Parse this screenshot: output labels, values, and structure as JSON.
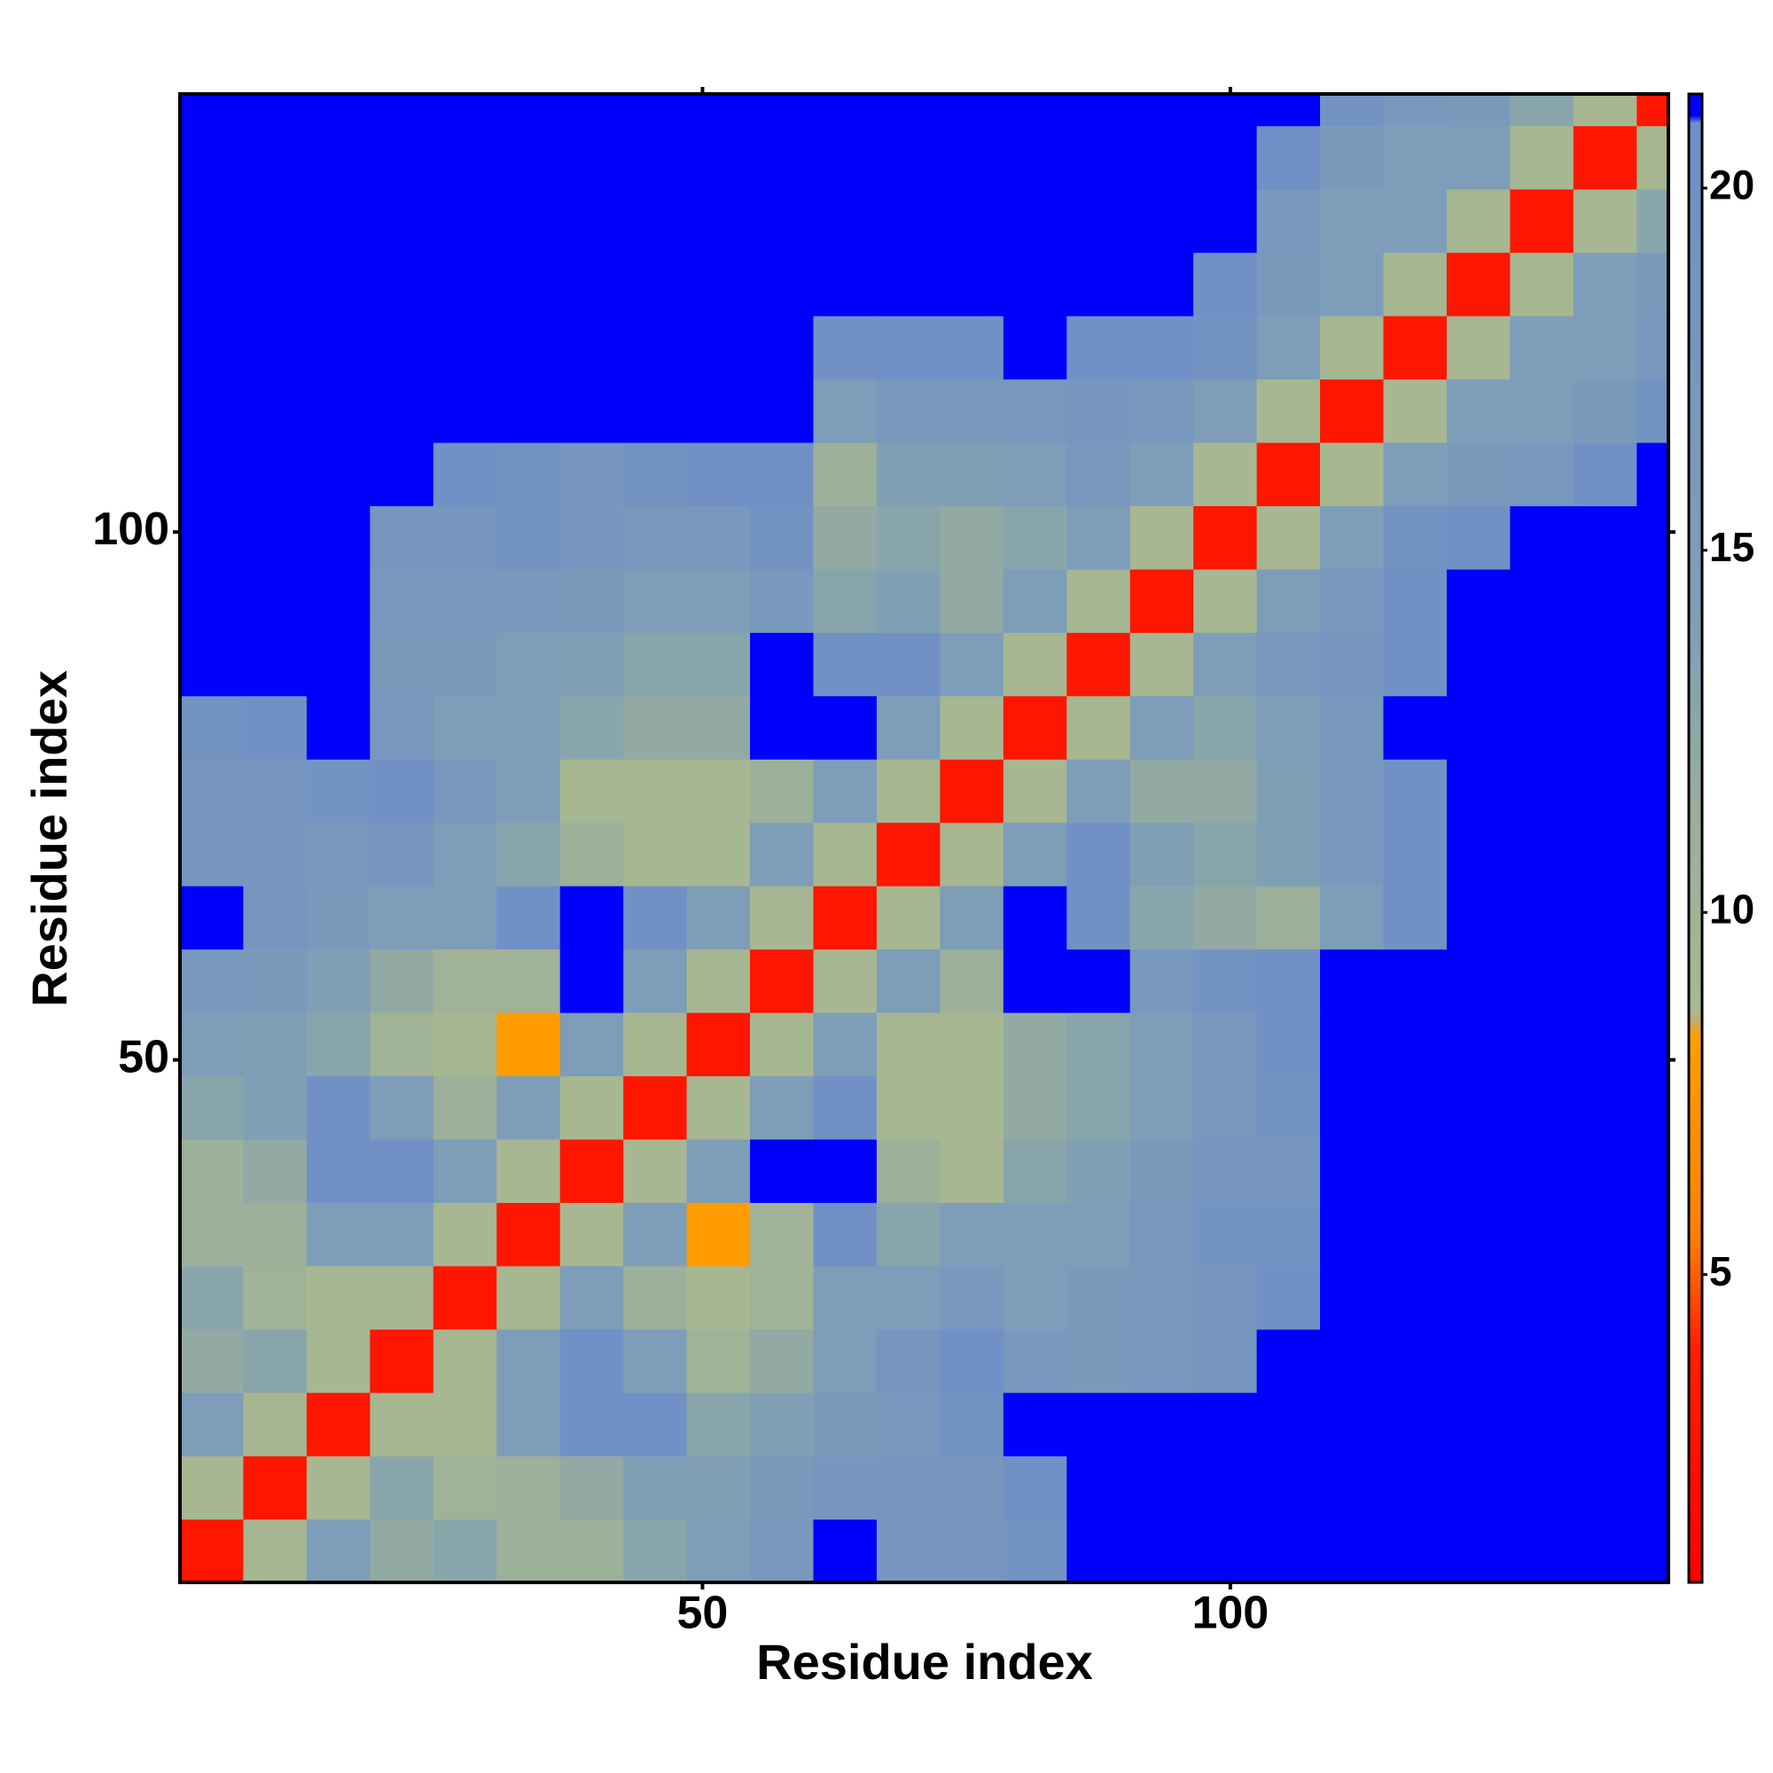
{
  "chart_data": {
    "type": "heatmap",
    "x_label": "Residue index",
    "y_label": "Residue index",
    "xbins": [
      0.5,
      6.5,
      12.5,
      18.5,
      24.5,
      30.5,
      36.5,
      42.5,
      48.5,
      54.5,
      60.5,
      66.5,
      72.5,
      78.5,
      84.5,
      90.5,
      96.5,
      102.5,
      108.5,
      114.5,
      120.5,
      126.5,
      132.5,
      138.5,
      141.5
    ],
    "ybins": [
      0.5,
      6.5,
      12.5,
      18.5,
      24.5,
      30.5,
      36.5,
      42.5,
      48.5,
      54.5,
      60.5,
      66.5,
      72.5,
      78.5,
      84.5,
      90.5,
      96.5,
      102.5,
      108.5,
      114.5,
      120.5,
      126.5,
      132.5,
      138.5,
      141.5
    ],
    "xlim": [
      0.5,
      141.5
    ],
    "ylim": [
      0.5,
      141.5
    ],
    "xticks": [
      50,
      100
    ],
    "yticks": [
      50,
      100
    ],
    "values": [
      [
        3,
        9,
        15,
        12,
        13,
        11,
        11,
        13,
        15,
        17,
        21.2,
        18,
        18,
        19,
        21.2,
        21.2,
        21.2,
        21.2,
        21.2,
        21.2,
        21.2,
        21.2,
        21.2,
        21.2
      ],
      [
        9,
        3,
        9,
        13,
        10,
        11,
        12,
        14,
        14,
        16,
        18,
        18,
        18,
        20,
        21.2,
        21.2,
        21.2,
        21.2,
        21.2,
        21.2,
        21.2,
        21.2,
        21.2,
        21.2
      ],
      [
        15,
        9,
        3,
        9,
        9,
        15,
        20,
        20,
        13,
        14,
        16,
        17,
        19,
        21.2,
        21.2,
        21.2,
        21.2,
        21.2,
        21.2,
        21.2,
        21.2,
        21.2,
        21.2,
        21.2
      ],
      [
        12,
        13,
        9,
        3,
        9,
        15,
        20,
        15,
        10,
        12,
        15,
        18,
        20,
        17,
        16,
        17,
        18,
        21.2,
        21.2,
        21.2,
        21.2,
        21.2,
        21.2,
        21.2
      ],
      [
        13,
        10,
        9,
        9,
        3,
        9,
        15,
        11,
        9,
        10,
        15,
        15,
        17,
        15,
        16,
        17,
        18,
        20,
        21.2,
        21.2,
        21.2,
        21.2,
        21.2,
        21.2
      ],
      [
        11,
        11,
        15,
        15,
        9,
        3,
        9,
        15,
        8,
        10,
        20,
        13,
        15,
        15,
        15,
        17,
        19,
        19,
        21.2,
        21.2,
        21.2,
        21.2,
        21.2,
        21.2
      ],
      [
        11,
        12,
        20,
        20,
        15,
        9,
        3,
        9,
        15,
        21.2,
        21.2,
        11,
        9,
        13,
        14,
        16,
        18,
        18,
        21.2,
        21.2,
        21.2,
        21.2,
        21.2,
        21.2
      ],
      [
        13,
        14,
        20,
        15,
        11,
        15,
        9,
        3,
        9,
        15,
        20,
        9,
        9,
        12,
        13,
        15,
        17,
        19,
        21.2,
        21.2,
        21.2,
        21.2,
        21.2,
        21.2
      ],
      [
        15,
        14,
        13,
        10,
        9,
        8,
        15,
        9,
        3,
        9,
        15,
        9,
        9,
        12,
        13,
        15,
        17,
        20,
        21.2,
        21.2,
        21.2,
        21.2,
        21.2,
        21.2
      ],
      [
        17,
        16,
        14,
        12,
        10,
        10,
        21.2,
        15,
        9,
        3,
        9,
        15,
        11,
        21.2,
        21.2,
        17,
        19,
        20,
        21.2,
        21.2,
        21.2,
        21.2,
        21.2,
        21.2
      ],
      [
        21.2,
        18,
        16,
        15,
        15,
        20,
        21.2,
        20,
        15,
        9,
        3,
        9,
        15,
        21.2,
        20,
        13,
        12,
        11,
        15,
        20,
        21.2,
        21.2,
        21.2,
        21.2
      ],
      [
        18,
        18,
        17,
        18,
        15,
        13,
        11,
        9,
        9,
        15,
        9,
        3,
        9,
        15,
        20,
        14,
        13,
        14,
        17,
        20,
        21.2,
        21.2,
        21.2,
        21.2
      ],
      [
        18,
        18,
        19,
        20,
        17,
        15,
        9,
        9,
        9,
        11,
        15,
        9,
        3,
        9,
        15,
        12,
        12,
        14,
        17,
        20,
        21.2,
        21.2,
        21.2,
        21.2
      ],
      [
        19,
        20,
        21.2,
        17,
        15,
        15,
        13,
        12,
        12,
        21.2,
        21.2,
        15,
        9,
        3,
        9,
        15,
        13,
        15,
        17,
        21.2,
        21.2,
        21.2,
        21.2,
        21.2
      ],
      [
        21.2,
        21.2,
        21.2,
        16,
        16,
        15,
        14,
        13,
        13,
        21.2,
        20,
        20,
        15,
        9,
        3,
        9,
        15,
        17,
        18,
        20,
        21.2,
        21.2,
        21.2,
        21.2
      ],
      [
        21.2,
        21.2,
        21.2,
        17,
        17,
        17,
        16,
        15,
        15,
        17,
        13,
        14,
        12,
        15,
        9,
        3,
        9,
        15,
        17,
        20,
        21.2,
        21.2,
        21.2,
        21.2
      ],
      [
        21.2,
        21.2,
        21.2,
        18,
        18,
        19,
        18,
        17,
        17,
        19,
        12,
        13,
        12,
        13,
        15,
        9,
        3,
        9,
        15,
        19,
        20,
        21.2,
        21.2,
        21.2
      ],
      [
        21.2,
        21.2,
        21.2,
        21.2,
        20,
        19,
        18,
        19,
        20,
        20,
        11,
        14,
        14,
        15,
        17,
        15,
        9,
        3,
        9,
        15,
        16,
        17,
        20,
        21.2
      ],
      [
        21.2,
        21.2,
        21.2,
        21.2,
        21.2,
        21.2,
        21.2,
        21.2,
        21.2,
        21.2,
        15,
        17,
        17,
        17,
        18,
        17,
        15,
        9,
        3,
        9,
        15,
        15,
        16,
        19
      ],
      [
        21.2,
        21.2,
        21.2,
        21.2,
        21.2,
        21.2,
        21.2,
        21.2,
        21.2,
        21.2,
        20,
        20,
        20,
        21.2,
        20,
        20,
        19,
        15,
        9,
        3,
        9,
        15,
        15,
        17
      ],
      [
        21.2,
        21.2,
        21.2,
        21.2,
        21.2,
        21.2,
        21.2,
        21.2,
        21.2,
        21.2,
        21.2,
        21.2,
        21.2,
        21.2,
        21.2,
        21.2,
        20,
        16,
        15,
        9,
        3,
        9,
        15,
        16
      ],
      [
        21.2,
        21.2,
        21.2,
        21.2,
        21.2,
        21.2,
        21.2,
        21.2,
        21.2,
        21.2,
        21.2,
        21.2,
        21.2,
        21.2,
        21.2,
        21.2,
        21.2,
        17,
        15,
        15,
        9,
        3,
        9,
        13
      ],
      [
        21.2,
        21.2,
        21.2,
        21.2,
        21.2,
        21.2,
        21.2,
        21.2,
        21.2,
        21.2,
        21.2,
        21.2,
        21.2,
        21.2,
        21.2,
        21.2,
        21.2,
        20,
        16,
        15,
        15,
        9,
        3,
        9
      ],
      [
        21.2,
        21.2,
        21.2,
        21.2,
        21.2,
        21.2,
        21.2,
        21.2,
        21.2,
        21.2,
        21.2,
        21.2,
        21.2,
        21.2,
        21.2,
        21.2,
        21.2,
        21.2,
        19,
        17,
        16,
        13,
        9,
        3
      ]
    ],
    "colorscale": [
      {
        "value": 0.75,
        "color": "#ff0000"
      },
      {
        "value": 4,
        "color": "#ff2000"
      },
      {
        "value": 5.5,
        "color": "#ff8000"
      },
      {
        "value": 8.3,
        "color": "#ffa000"
      },
      {
        "value": 8.6,
        "color": "#a8b890"
      },
      {
        "value": 11,
        "color": "#9cb09a"
      },
      {
        "value": 14,
        "color": "#7f9fb5"
      },
      {
        "value": 20.9,
        "color": "#6f8fc8"
      },
      {
        "value": 21,
        "color": "#0000ff"
      },
      {
        "value": 21.3,
        "color": "#0000ff"
      }
    ],
    "colorbar": {
      "lim": [
        0.75,
        21.3
      ],
      "ticks": [
        5,
        10,
        15,
        20
      ]
    }
  }
}
